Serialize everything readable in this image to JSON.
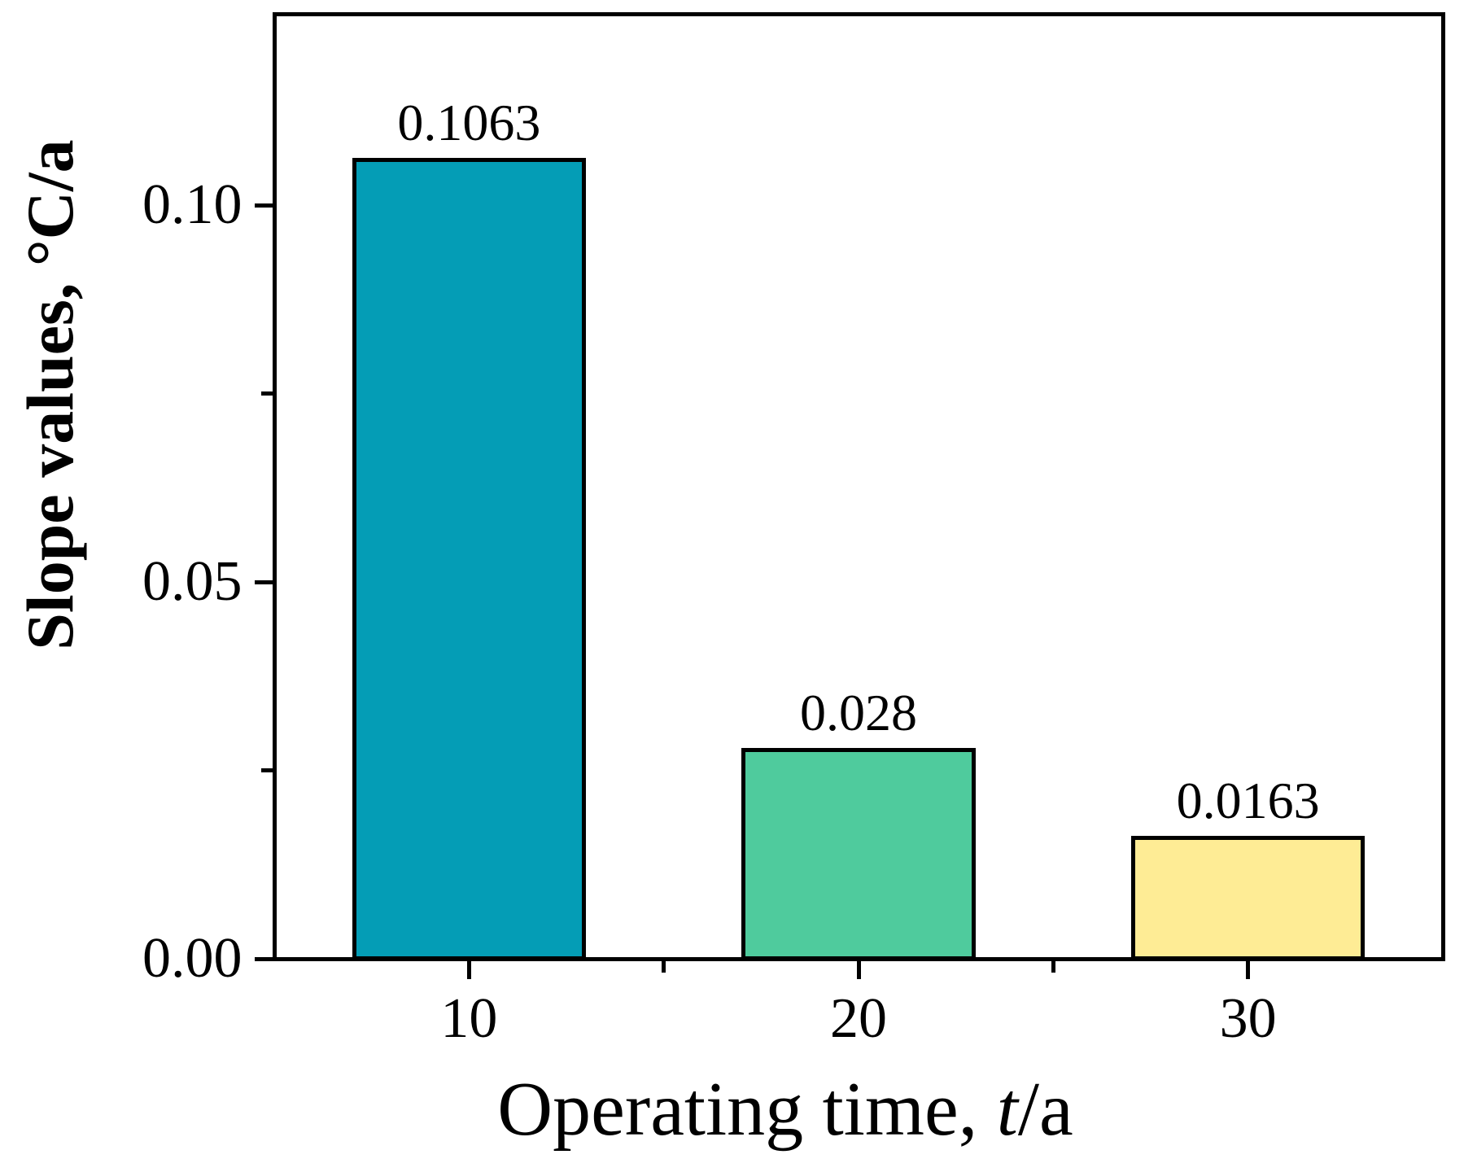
{
  "figure": {
    "background": "#ffffff",
    "text_color": "#000000",
    "axis_color": "#000000"
  },
  "chart_data": {
    "type": "bar",
    "title": "",
    "categories": [
      "10",
      "20",
      "30"
    ],
    "x": [
      10,
      20,
      30
    ],
    "values": [
      0.1063,
      0.028,
      0.0163
    ],
    "value_labels": [
      "0.1063",
      "0.028",
      "0.0163"
    ],
    "series_colors": [
      "#049db6",
      "#4fcb9d",
      "#feec95"
    ],
    "bar_edge_color": "#000000",
    "bar_width_units": 6,
    "xlabel_full": "Operating time, t/a",
    "xlabel_prefix": "Operating time, ",
    "xlabel_italic": "t",
    "xlabel_suffix": "/a",
    "ylabel": "Slope values, °C/a",
    "xlim": [
      5,
      35
    ],
    "ylim": [
      0,
      0.1254
    ],
    "x_major_ticks": [
      10,
      20,
      30
    ],
    "x_minor_ticks": [
      15,
      25
    ],
    "y_major_ticks": [
      {
        "value": 0.0,
        "label": "0.00"
      },
      {
        "value": 0.05,
        "label": "0.05"
      },
      {
        "value": 0.1,
        "label": "0.10"
      }
    ],
    "y_minor_ticks": [
      0.025,
      0.075
    ],
    "grid": false,
    "legend": "none"
  }
}
